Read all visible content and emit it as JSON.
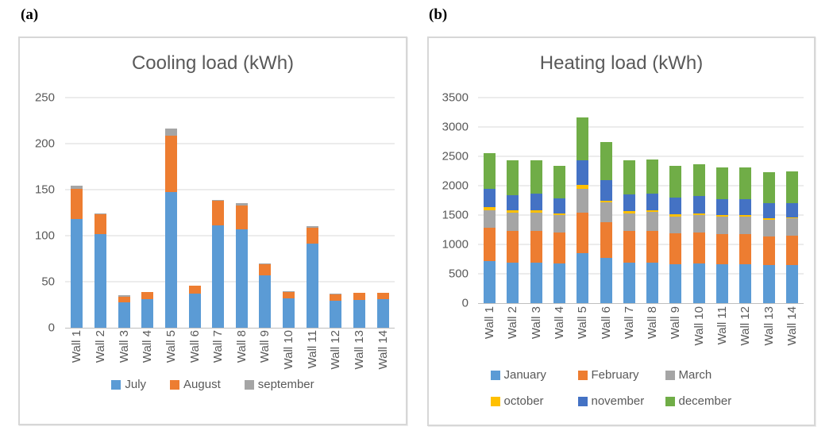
{
  "figure": {
    "panel_a_label": "(a)",
    "panel_b_label": "(b)"
  },
  "colors": {
    "blue": "#5B9BD5",
    "orange": "#ED7D31",
    "gray": "#A5A5A5",
    "yellow": "#FFC000",
    "navy": "#4472C4",
    "green": "#70AD47",
    "text": "#595959",
    "gridline": "#D9D9D9"
  },
  "chart_data": [
    {
      "id": "cooling",
      "type": "bar",
      "stacked": true,
      "title": "Cooling load (kWh)",
      "categories": [
        "Wall 1",
        "Wall 2",
        "Wall 3",
        "Wall 4",
        "Wall 5",
        "Wall 6",
        "Wall 7",
        "Wall 8",
        "Wall 9",
        "Wall 10",
        "Wall 11",
        "Wall 12",
        "Wall 13",
        "Wall 14"
      ],
      "series": [
        {
          "name": "July",
          "color": "#5B9BD5",
          "values": [
            118,
            102,
            28,
            31,
            147,
            37,
            111,
            107,
            57,
            32,
            91,
            29,
            30,
            31
          ]
        },
        {
          "name": "August",
          "color": "#ED7D31",
          "values": [
            33,
            21,
            6,
            8,
            62,
            9,
            27,
            26,
            12,
            7,
            18,
            7,
            8,
            7
          ]
        },
        {
          "name": "september",
          "color": "#A5A5A5",
          "values": [
            3,
            1,
            1,
            0,
            7,
            0,
            1,
            2,
            1,
            1,
            1,
            1,
            0,
            0
          ]
        }
      ],
      "ylim": [
        0,
        250
      ],
      "ystep": 50,
      "yticks": [
        0,
        50,
        100,
        150,
        200,
        250
      ],
      "grid": true,
      "legend_position": "bottom",
      "legend_rows": 1
    },
    {
      "id": "heating",
      "type": "bar",
      "stacked": true,
      "title": "Heating load (kWh)",
      "categories": [
        "Wall 1",
        "Wall 2",
        "Wall 3",
        "Wall 4",
        "Wall 5",
        "Wall 6",
        "Wall 7",
        "Wall 8",
        "Wall 9",
        "Wall 10",
        "Wall 11",
        "Wall 12",
        "Wall 13",
        "Wall 14"
      ],
      "series": [
        {
          "name": "January",
          "color": "#5B9BD5",
          "values": [
            710,
            690,
            690,
            675,
            845,
            765,
            690,
            690,
            665,
            675,
            665,
            665,
            650,
            650
          ]
        },
        {
          "name": "February",
          "color": "#ED7D31",
          "values": [
            575,
            540,
            540,
            530,
            695,
            610,
            540,
            540,
            530,
            530,
            515,
            515,
            490,
            505
          ]
        },
        {
          "name": "March",
          "color": "#A5A5A5",
          "values": [
            300,
            310,
            315,
            295,
            405,
            345,
            300,
            320,
            285,
            295,
            295,
            290,
            280,
            285
          ]
        },
        {
          "name": "october",
          "color": "#FFC000",
          "values": [
            50,
            35,
            35,
            30,
            75,
            30,
            35,
            30,
            30,
            30,
            25,
            25,
            20,
            20
          ]
        },
        {
          "name": "november",
          "color": "#4472C4",
          "values": [
            310,
            270,
            280,
            260,
            415,
            350,
            290,
            285,
            285,
            295,
            270,
            275,
            260,
            240
          ]
        },
        {
          "name": "december",
          "color": "#70AD47",
          "values": [
            610,
            590,
            570,
            545,
            725,
            645,
            580,
            585,
            540,
            540,
            545,
            545,
            530,
            545
          ]
        }
      ],
      "ylim": [
        0,
        3500
      ],
      "ystep": 500,
      "yticks": [
        0,
        500,
        1000,
        1500,
        2000,
        2500,
        3000,
        3500
      ],
      "grid": true,
      "legend_position": "bottom",
      "legend_rows": 2
    }
  ]
}
